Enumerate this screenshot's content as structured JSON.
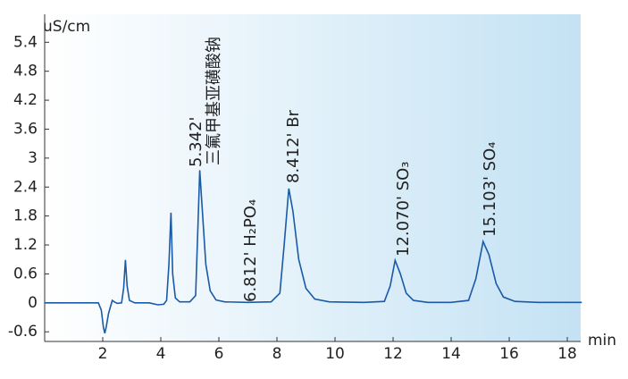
{
  "chart_data": {
    "type": "line",
    "y_label": "uS/cm",
    "x_label": "min",
    "color": "#1a5aa6",
    "x": [
      0,
      1.5,
      1.85,
      1.95,
      2.02,
      2.07,
      2.12,
      2.2,
      2.28,
      2.33,
      2.4,
      2.5,
      2.65,
      2.72,
      2.78,
      2.84,
      2.92,
      3.1,
      3.6,
      3.9,
      4.1,
      4.2,
      4.28,
      4.35,
      4.41,
      4.5,
      4.65,
      5.0,
      5.2,
      5.28,
      5.34,
      5.42,
      5.55,
      5.7,
      5.9,
      6.2,
      7.0,
      7.8,
      8.1,
      8.25,
      8.41,
      8.55,
      8.75,
      9.0,
      9.3,
      9.8,
      11.0,
      11.7,
      11.9,
      12.07,
      12.25,
      12.45,
      12.7,
      13.2,
      14.0,
      14.6,
      14.85,
      15.1,
      15.3,
      15.55,
      15.8,
      16.2,
      17,
      18.5
    ],
    "values": [
      0,
      0,
      0,
      -0.15,
      -0.5,
      -0.63,
      -0.5,
      -0.22,
      -0.05,
      0.05,
      0.02,
      -0.01,
      0,
      0.3,
      0.89,
      0.35,
      0.05,
      0,
      0,
      -0.04,
      -0.03,
      0.05,
      0.8,
      1.87,
      0.6,
      0.1,
      0.02,
      0.02,
      0.15,
      1.6,
      2.75,
      2.0,
      0.8,
      0.25,
      0.06,
      0.02,
      0.01,
      0.02,
      0.2,
      1.2,
      2.37,
      1.9,
      0.9,
      0.3,
      0.08,
      0.02,
      0.01,
      0.03,
      0.35,
      0.88,
      0.6,
      0.2,
      0.05,
      0.01,
      0.01,
      0.05,
      0.5,
      1.27,
      1.0,
      0.4,
      0.12,
      0.03,
      0.01,
      0.01
    ],
    "xlim": [
      0,
      18.46
    ],
    "ylim": [
      -0.8,
      5.98
    ],
    "xticks": [
      2,
      4,
      6,
      8,
      10,
      12,
      14,
      16,
      18
    ],
    "yticks": [
      -0.6,
      0,
      0.6,
      1.2,
      1.8,
      2.4,
      3,
      3.6,
      4.2,
      4.8,
      5.4
    ],
    "annotations": [
      "5.342'",
      "三氟甲基亚磺酸钠",
      "6.812' H₂PO₄",
      "8.412' Br",
      "12.070' SO₃",
      "15.103' SO₄"
    ]
  }
}
